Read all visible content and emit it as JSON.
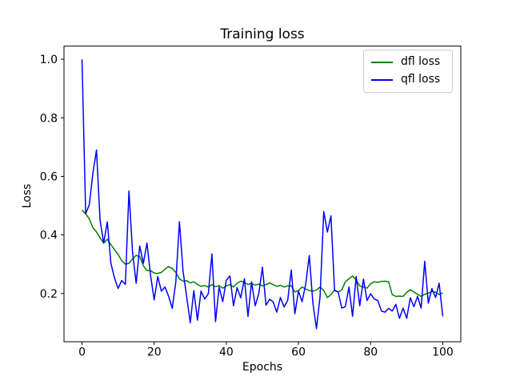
{
  "figure": {
    "title": "Training loss",
    "xlabel": "Epochs",
    "ylabel": "Loss"
  },
  "legend": {
    "entries": [
      {
        "label": "dfl loss",
        "color": "#008000"
      },
      {
        "label": "qfl loss",
        "color": "#0000ff"
      }
    ]
  },
  "chart_data": {
    "type": "line",
    "title": "Training loss",
    "xlabel": "Epochs",
    "ylabel": "Loss",
    "grid": false,
    "legend_position": "upper right",
    "xlim": [
      -5,
      105
    ],
    "ylim": [
      0.035,
      1.045
    ],
    "xticks": [
      0,
      20,
      40,
      60,
      80,
      100
    ],
    "yticks": [
      0.2,
      0.4,
      0.6,
      0.8,
      1.0
    ],
    "x": [
      0,
      1,
      2,
      3,
      4,
      5,
      6,
      7,
      8,
      9,
      10,
      11,
      12,
      13,
      14,
      15,
      16,
      17,
      18,
      19,
      20,
      21,
      22,
      23,
      24,
      25,
      26,
      27,
      28,
      29,
      30,
      31,
      32,
      33,
      34,
      35,
      36,
      37,
      38,
      39,
      40,
      41,
      42,
      43,
      44,
      45,
      46,
      47,
      48,
      49,
      50,
      51,
      52,
      53,
      54,
      55,
      56,
      57,
      58,
      59,
      60,
      61,
      62,
      63,
      64,
      65,
      66,
      67,
      68,
      69,
      70,
      71,
      72,
      73,
      74,
      75,
      76,
      77,
      78,
      79,
      80,
      81,
      82,
      83,
      84,
      85,
      86,
      87,
      88,
      89,
      90,
      91,
      92,
      93,
      94,
      95,
      96,
      97,
      98,
      99,
      100
    ],
    "series": [
      {
        "name": "dfl loss",
        "color": "#008000",
        "values": [
          0.485,
          0.472,
          0.455,
          0.425,
          0.41,
          0.39,
          0.372,
          0.385,
          0.367,
          0.35,
          0.333,
          0.312,
          0.3,
          0.303,
          0.318,
          0.33,
          0.326,
          0.295,
          0.278,
          0.278,
          0.27,
          0.268,
          0.272,
          0.283,
          0.292,
          0.285,
          0.272,
          0.25,
          0.242,
          0.244,
          0.236,
          0.24,
          0.231,
          0.224,
          0.227,
          0.222,
          0.23,
          0.223,
          0.227,
          0.218,
          0.226,
          0.23,
          0.222,
          0.235,
          0.242,
          0.238,
          0.23,
          0.235,
          0.228,
          0.232,
          0.226,
          0.23,
          0.236,
          0.23,
          0.224,
          0.228,
          0.222,
          0.226,
          0.226,
          0.205,
          0.21,
          0.222,
          0.215,
          0.21,
          0.208,
          0.212,
          0.222,
          0.21,
          0.186,
          0.196,
          0.212,
          0.205,
          0.212,
          0.24,
          0.25,
          0.26,
          0.246,
          0.226,
          0.222,
          0.218,
          0.233,
          0.24,
          0.238,
          0.241,
          0.242,
          0.24,
          0.196,
          0.19,
          0.191,
          0.19,
          0.204,
          0.213,
          0.205,
          0.197,
          0.19,
          0.197,
          0.201,
          0.207,
          0.204,
          0.196,
          0.202
        ]
      },
      {
        "name": "qfl loss",
        "color": "#0000ff",
        "values": [
          1.0,
          0.472,
          0.503,
          0.61,
          0.69,
          0.45,
          0.372,
          0.445,
          0.303,
          0.253,
          0.217,
          0.244,
          0.231,
          0.55,
          0.34,
          0.235,
          0.362,
          0.303,
          0.372,
          0.262,
          0.178,
          0.258,
          0.208,
          0.222,
          0.19,
          0.149,
          0.24,
          0.445,
          0.276,
          0.19,
          0.1,
          0.21,
          0.109,
          0.208,
          0.181,
          0.199,
          0.335,
          0.104,
          0.222,
          0.172,
          0.245,
          0.26,
          0.158,
          0.22,
          0.185,
          0.25,
          0.122,
          0.24,
          0.158,
          0.2,
          0.29,
          0.16,
          0.18,
          0.171,
          0.136,
          0.186,
          0.154,
          0.176,
          0.28,
          0.131,
          0.208,
          0.172,
          0.231,
          0.33,
          0.167,
          0.08,
          0.19,
          0.48,
          0.41,
          0.465,
          0.21,
          0.205,
          0.15,
          0.155,
          0.222,
          0.122,
          0.258,
          0.158,
          0.249,
          0.176,
          0.199,
          0.181,
          0.176,
          0.14,
          0.136,
          0.149,
          0.14,
          0.163,
          0.115,
          0.15,
          0.115,
          0.185,
          0.155,
          0.19,
          0.15,
          0.31,
          0.167,
          0.217,
          0.186,
          0.235,
          0.122
        ]
      }
    ]
  }
}
